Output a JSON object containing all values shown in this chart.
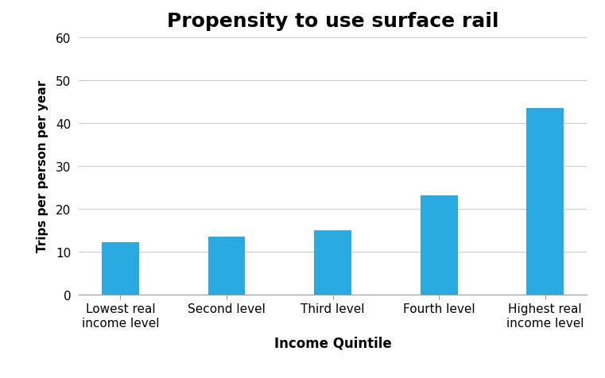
{
  "title": "Propensity to use surface rail",
  "title_fontsize": 18,
  "title_fontweight": "bold",
  "xlabel": "Income Quintile",
  "xlabel_fontsize": 12,
  "xlabel_fontweight": "bold",
  "ylabel": "Trips per person per year",
  "ylabel_fontsize": 11,
  "ylabel_fontweight": "bold",
  "categories": [
    "Lowest real\nincome level",
    "Second level",
    "Third level",
    "Fourth level",
    "Highest real\nincome level"
  ],
  "values": [
    12.2,
    13.5,
    15.0,
    23.2,
    43.5
  ],
  "bar_color": "#29ABE2",
  "ylim": [
    0,
    60
  ],
  "yticks": [
    0,
    10,
    20,
    30,
    40,
    50,
    60
  ],
  "bar_width": 0.35,
  "grid_color": "#cccccc",
  "background_color": "#ffffff",
  "spine_color": "#999999",
  "tick_fontsize": 11
}
